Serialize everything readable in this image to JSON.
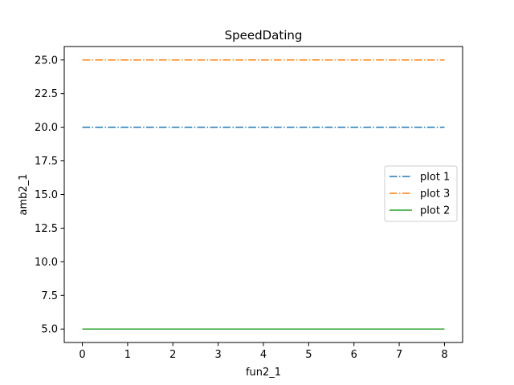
{
  "chart_data": {
    "type": "line",
    "title": "SpeedDating",
    "xlabel": "fun2_1",
    "ylabel": "amb2_1",
    "xlim": [
      -0.4,
      8.4
    ],
    "ylim": [
      4.0,
      26.0
    ],
    "x_ticks": [
      "0",
      "1",
      "2",
      "3",
      "4",
      "5",
      "6",
      "7",
      "8"
    ],
    "y_ticks": [
      "5.0",
      "7.5",
      "10.0",
      "12.5",
      "15.0",
      "17.5",
      "20.0",
      "22.5",
      "25.0"
    ],
    "grid": false,
    "legend_position": "center-right",
    "series": [
      {
        "name": "plot 1",
        "color": "#1f77b4",
        "style": "dashdot",
        "x": [
          0,
          8
        ],
        "y": [
          20.0,
          20.0
        ]
      },
      {
        "name": "plot 3",
        "color": "#ff7f0e",
        "style": "dashdot",
        "x": [
          0,
          8
        ],
        "y": [
          25.0,
          25.0
        ]
      },
      {
        "name": "plot 2",
        "color": "#2ca02c",
        "style": "solid",
        "x": [
          0,
          8
        ],
        "y": [
          5.0,
          5.0
        ]
      }
    ]
  }
}
